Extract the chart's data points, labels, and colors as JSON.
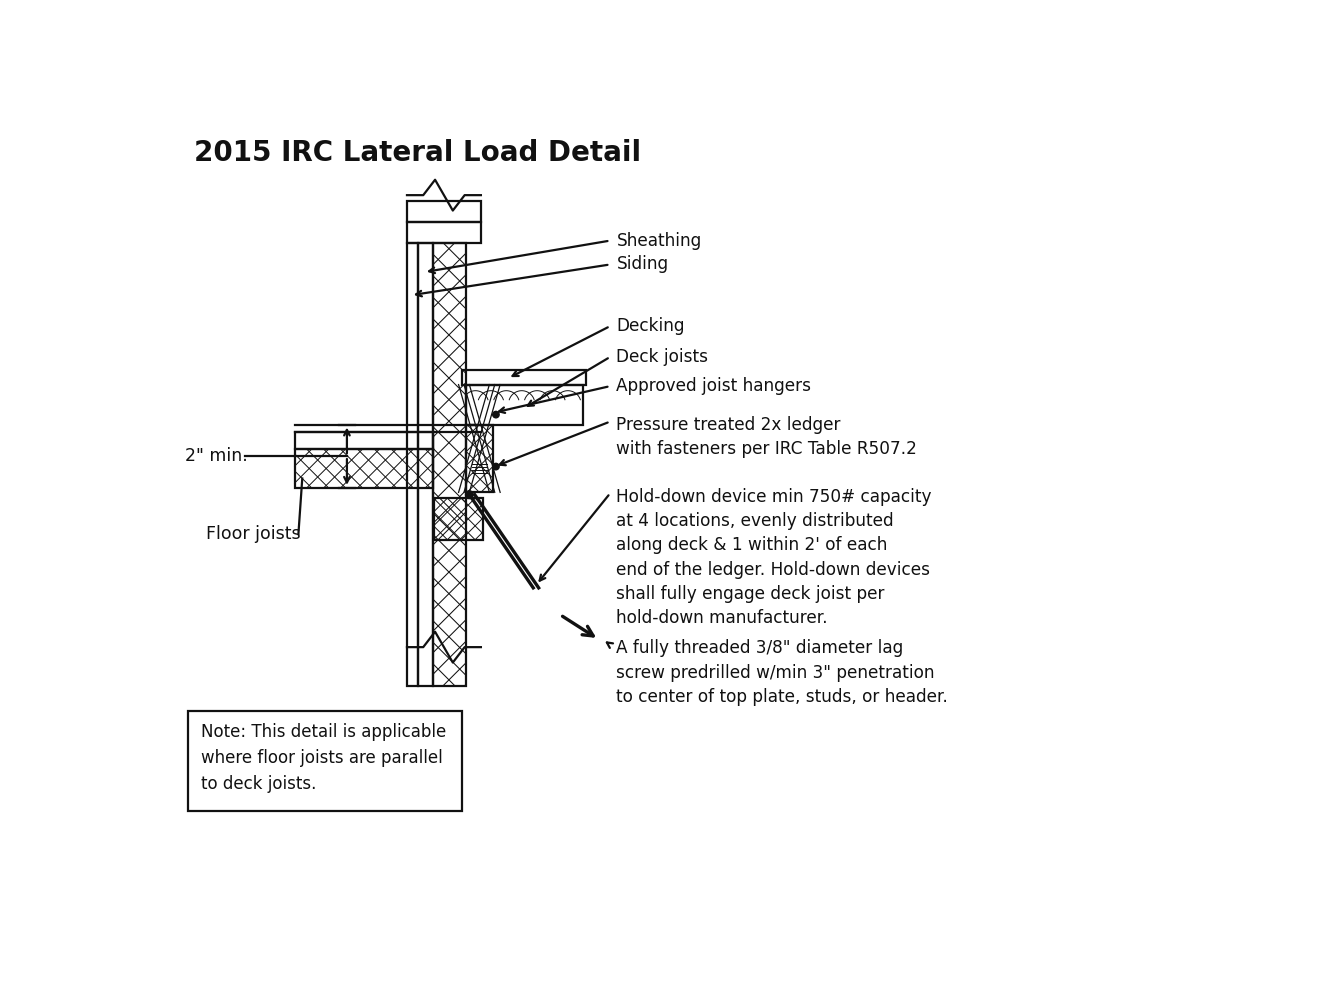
{
  "title": "2015 IRC Lateral Load Detail",
  "title_fontsize": 20,
  "title_fontweight": "bold",
  "bg_color": "#ffffff",
  "line_color": "#111111",
  "text_color": "#111111",
  "labels": {
    "sheathing": "Sheathing",
    "siding": "Siding",
    "decking": "Decking",
    "deck_joists": "Deck joists",
    "approved_hangers": "Approved joist hangers",
    "pressure_ledger": "Pressure treated 2x ledger\nwith fasteners per IRC Table R507.2",
    "hold_down": "Hold-down device min 750# capacity\nat 4 locations, evenly distributed\nalong deck & 1 within 2' of each\nend of the ledger. Hold-down devices\nshall fully engage deck joist per\nhold-down manufacturer.",
    "lag_screw": "A fully threaded 3/8\" diameter lag\nscrew predrilled w/min 3\" penetration\nto center of top plate, studs, or header.",
    "floor_joists": "Floor joists",
    "two_inch": "2\" min.",
    "note": "Note: This detail is applicable\nwhere floor joists are parallel\nto deck joists."
  },
  "lw": 1.6
}
